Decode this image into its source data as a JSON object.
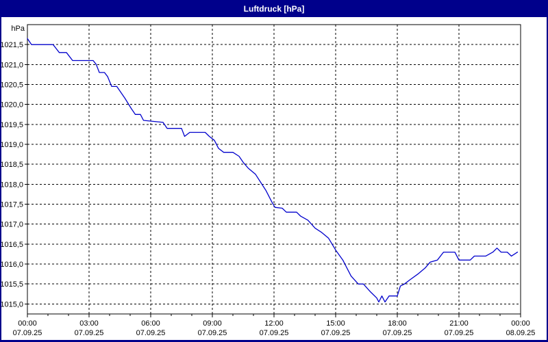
{
  "window": {
    "title": "Luftdruck [hPa]"
  },
  "colors": {
    "frame_bg": "#00008B",
    "plot_bg": "#ffffff",
    "line": "#0000CC",
    "grid": "#000000",
    "text": "#000000",
    "title_text": "#ffffff"
  },
  "chart_data": {
    "type": "line",
    "title": "Luftdruck [hPa]",
    "ylabel": "hPa",
    "xlabel": "",
    "grid": true,
    "legend_position": "none",
    "xlim": [
      0,
      24
    ],
    "ylim": [
      1014.75,
      1022.0
    ],
    "xticks": [
      {
        "t": 0,
        "time": "00:00",
        "date": "07.09.25"
      },
      {
        "t": 3,
        "time": "03:00",
        "date": "07.09.25"
      },
      {
        "t": 6,
        "time": "06:00",
        "date": "07.09.25"
      },
      {
        "t": 9,
        "time": "09:00",
        "date": "07.09.25"
      },
      {
        "t": 12,
        "time": "12:00",
        "date": "07.09.25"
      },
      {
        "t": 15,
        "time": "15:00",
        "date": "07.09.25"
      },
      {
        "t": 18,
        "time": "18:00",
        "date": "07.09.25"
      },
      {
        "t": 21,
        "time": "21:00",
        "date": "07.09.25"
      },
      {
        "t": 24,
        "time": "00:00",
        "date": "08.09.25"
      }
    ],
    "yticks": [
      {
        "v": 1015.0,
        "label": "1015,0"
      },
      {
        "v": 1015.5,
        "label": "1015,5"
      },
      {
        "v": 1016.0,
        "label": "1016,0"
      },
      {
        "v": 1016.5,
        "label": "1016,5"
      },
      {
        "v": 1017.0,
        "label": "1017,0"
      },
      {
        "v": 1017.5,
        "label": "1017,5"
      },
      {
        "v": 1018.0,
        "label": "1018,0"
      },
      {
        "v": 1018.5,
        "label": "1018,5"
      },
      {
        "v": 1019.0,
        "label": "1019,0"
      },
      {
        "v": 1019.5,
        "label": "1019,5"
      },
      {
        "v": 1020.0,
        "label": "1020,0"
      },
      {
        "v": 1020.5,
        "label": "1020,5"
      },
      {
        "v": 1021.0,
        "label": "1021,0"
      },
      {
        "v": 1021.5,
        "label": "1021,5"
      }
    ],
    "series": [
      {
        "name": "Luftdruck",
        "unit": "hPa",
        "color": "#0000CC",
        "points": [
          [
            0.0,
            1021.65
          ],
          [
            0.2,
            1021.5
          ],
          [
            1.25,
            1021.5
          ],
          [
            1.4,
            1021.4
          ],
          [
            1.55,
            1021.3
          ],
          [
            1.9,
            1021.3
          ],
          [
            2.05,
            1021.2
          ],
          [
            2.2,
            1021.1
          ],
          [
            3.2,
            1021.1
          ],
          [
            3.35,
            1021.0
          ],
          [
            3.5,
            1020.8
          ],
          [
            3.75,
            1020.8
          ],
          [
            3.9,
            1020.7
          ],
          [
            4.1,
            1020.45
          ],
          [
            4.35,
            1020.45
          ],
          [
            4.75,
            1020.15
          ],
          [
            5.05,
            1019.9
          ],
          [
            5.25,
            1019.75
          ],
          [
            5.5,
            1019.75
          ],
          [
            5.65,
            1019.6
          ],
          [
            6.6,
            1019.55
          ],
          [
            6.8,
            1019.4
          ],
          [
            7.5,
            1019.4
          ],
          [
            7.65,
            1019.2
          ],
          [
            7.9,
            1019.3
          ],
          [
            8.65,
            1019.3
          ],
          [
            8.85,
            1019.2
          ],
          [
            9.1,
            1019.1
          ],
          [
            9.3,
            1018.9
          ],
          [
            9.55,
            1018.8
          ],
          [
            10.0,
            1018.8
          ],
          [
            10.3,
            1018.7
          ],
          [
            10.5,
            1018.55
          ],
          [
            10.75,
            1018.4
          ],
          [
            11.1,
            1018.25
          ],
          [
            11.35,
            1018.05
          ],
          [
            11.6,
            1017.85
          ],
          [
            11.9,
            1017.55
          ],
          [
            12.05,
            1017.42
          ],
          [
            12.4,
            1017.4
          ],
          [
            12.6,
            1017.3
          ],
          [
            13.1,
            1017.3
          ],
          [
            13.3,
            1017.2
          ],
          [
            13.65,
            1017.1
          ],
          [
            14.0,
            1016.9
          ],
          [
            14.3,
            1016.8
          ],
          [
            14.65,
            1016.65
          ],
          [
            15.0,
            1016.35
          ],
          [
            15.35,
            1016.1
          ],
          [
            15.5,
            1015.95
          ],
          [
            15.75,
            1015.7
          ],
          [
            16.1,
            1015.5
          ],
          [
            16.35,
            1015.5
          ],
          [
            16.7,
            1015.3
          ],
          [
            17.0,
            1015.15
          ],
          [
            17.1,
            1015.05
          ],
          [
            17.25,
            1015.2
          ],
          [
            17.4,
            1015.05
          ],
          [
            17.6,
            1015.2
          ],
          [
            18.0,
            1015.2
          ],
          [
            18.15,
            1015.45
          ],
          [
            18.35,
            1015.5
          ],
          [
            18.6,
            1015.6
          ],
          [
            19.0,
            1015.75
          ],
          [
            19.35,
            1015.9
          ],
          [
            19.6,
            1016.05
          ],
          [
            19.95,
            1016.1
          ],
          [
            20.25,
            1016.3
          ],
          [
            20.8,
            1016.3
          ],
          [
            21.0,
            1016.1
          ],
          [
            21.55,
            1016.1
          ],
          [
            21.75,
            1016.2
          ],
          [
            22.3,
            1016.2
          ],
          [
            22.65,
            1016.3
          ],
          [
            22.85,
            1016.4
          ],
          [
            23.05,
            1016.3
          ],
          [
            23.35,
            1016.3
          ],
          [
            23.55,
            1016.2
          ],
          [
            23.85,
            1016.3
          ]
        ]
      }
    ]
  }
}
